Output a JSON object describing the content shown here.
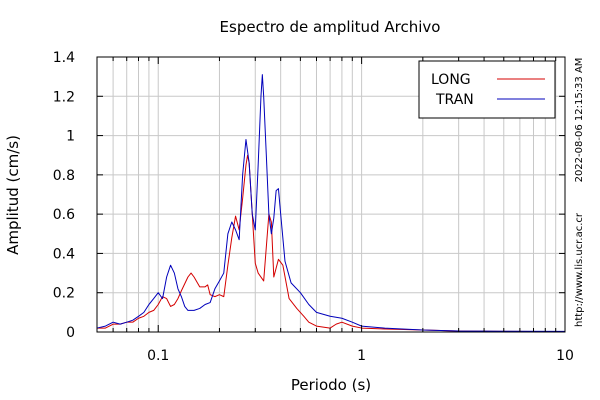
{
  "chart_data": {
    "type": "line",
    "title": "Espectro de amplitud Archivo",
    "xlabel": "Periodo (s)",
    "ylabel": "Amplitud (cm/s)",
    "x_scale": "log",
    "xlim": [
      0.05,
      10
    ],
    "ylim": [
      0,
      1.4
    ],
    "grid": true,
    "legend_position": "top-right",
    "xticks": [
      "0.1",
      "1",
      "10"
    ],
    "yticks": [
      "0",
      "0.2",
      "0.4",
      "0.6",
      "0.8",
      "1",
      "1.2",
      "1.4"
    ],
    "side_text": {
      "timestamp": "2022-08-06 12:15:33 AM",
      "url": "http://www.lis.ucr.ac.cr"
    },
    "series": [
      {
        "name": "LONG",
        "color": "#d40000",
        "points": [
          [
            0.05,
            0.02
          ],
          [
            0.055,
            0.02
          ],
          [
            0.06,
            0.04
          ],
          [
            0.065,
            0.04
          ],
          [
            0.07,
            0.05
          ],
          [
            0.075,
            0.05
          ],
          [
            0.08,
            0.07
          ],
          [
            0.085,
            0.08
          ],
          [
            0.09,
            0.1
          ],
          [
            0.095,
            0.11
          ],
          [
            0.1,
            0.14
          ],
          [
            0.105,
            0.18
          ],
          [
            0.11,
            0.17
          ],
          [
            0.115,
            0.13
          ],
          [
            0.12,
            0.14
          ],
          [
            0.125,
            0.17
          ],
          [
            0.13,
            0.21
          ],
          [
            0.14,
            0.28
          ],
          [
            0.145,
            0.3
          ],
          [
            0.15,
            0.28
          ],
          [
            0.16,
            0.23
          ],
          [
            0.17,
            0.23
          ],
          [
            0.175,
            0.24
          ],
          [
            0.18,
            0.19
          ],
          [
            0.19,
            0.18
          ],
          [
            0.2,
            0.19
          ],
          [
            0.21,
            0.18
          ],
          [
            0.22,
            0.34
          ],
          [
            0.23,
            0.48
          ],
          [
            0.24,
            0.59
          ],
          [
            0.25,
            0.52
          ],
          [
            0.26,
            0.68
          ],
          [
            0.27,
            0.85
          ],
          [
            0.275,
            0.9
          ],
          [
            0.28,
            0.86
          ],
          [
            0.29,
            0.6
          ],
          [
            0.3,
            0.35
          ],
          [
            0.31,
            0.3
          ],
          [
            0.33,
            0.26
          ],
          [
            0.35,
            0.6
          ],
          [
            0.36,
            0.56
          ],
          [
            0.37,
            0.28
          ],
          [
            0.39,
            0.37
          ],
          [
            0.41,
            0.34
          ],
          [
            0.44,
            0.17
          ],
          [
            0.48,
            0.12
          ],
          [
            0.52,
            0.08
          ],
          [
            0.55,
            0.05
          ],
          [
            0.6,
            0.03
          ],
          [
            0.7,
            0.02
          ],
          [
            0.75,
            0.04
          ],
          [
            0.8,
            0.05
          ],
          [
            0.9,
            0.03
          ],
          [
            1.0,
            0.02
          ],
          [
            1.3,
            0.015
          ],
          [
            2.0,
            0.01
          ],
          [
            3.0,
            0.005
          ],
          [
            5.0,
            0.003
          ],
          [
            10.0,
            0.002
          ]
        ]
      },
      {
        "name": "TRAN",
        "color": "#0000bb",
        "points": [
          [
            0.05,
            0.02
          ],
          [
            0.055,
            0.03
          ],
          [
            0.06,
            0.05
          ],
          [
            0.065,
            0.04
          ],
          [
            0.07,
            0.05
          ],
          [
            0.075,
            0.06
          ],
          [
            0.08,
            0.08
          ],
          [
            0.085,
            0.1
          ],
          [
            0.09,
            0.14
          ],
          [
            0.095,
            0.17
          ],
          [
            0.1,
            0.2
          ],
          [
            0.105,
            0.17
          ],
          [
            0.11,
            0.28
          ],
          [
            0.115,
            0.34
          ],
          [
            0.12,
            0.3
          ],
          [
            0.125,
            0.22
          ],
          [
            0.13,
            0.18
          ],
          [
            0.135,
            0.13
          ],
          [
            0.14,
            0.11
          ],
          [
            0.15,
            0.11
          ],
          [
            0.16,
            0.12
          ],
          [
            0.17,
            0.14
          ],
          [
            0.18,
            0.15
          ],
          [
            0.19,
            0.22
          ],
          [
            0.2,
            0.26
          ],
          [
            0.21,
            0.3
          ],
          [
            0.22,
            0.5
          ],
          [
            0.23,
            0.56
          ],
          [
            0.24,
            0.52
          ],
          [
            0.25,
            0.47
          ],
          [
            0.26,
            0.8
          ],
          [
            0.27,
            0.98
          ],
          [
            0.28,
            0.86
          ],
          [
            0.29,
            0.6
          ],
          [
            0.3,
            0.52
          ],
          [
            0.31,
            0.85
          ],
          [
            0.32,
            1.2
          ],
          [
            0.325,
            1.31
          ],
          [
            0.33,
            1.2
          ],
          [
            0.34,
            0.9
          ],
          [
            0.35,
            0.6
          ],
          [
            0.36,
            0.5
          ],
          [
            0.37,
            0.58
          ],
          [
            0.38,
            0.72
          ],
          [
            0.39,
            0.73
          ],
          [
            0.4,
            0.6
          ],
          [
            0.42,
            0.36
          ],
          [
            0.45,
            0.25
          ],
          [
            0.5,
            0.2
          ],
          [
            0.55,
            0.14
          ],
          [
            0.6,
            0.1
          ],
          [
            0.7,
            0.08
          ],
          [
            0.8,
            0.07
          ],
          [
            0.9,
            0.05
          ],
          [
            1.0,
            0.03
          ],
          [
            1.3,
            0.02
          ],
          [
            2.0,
            0.01
          ],
          [
            3.0,
            0.005
          ],
          [
            5.0,
            0.004
          ],
          [
            10.0,
            0.003
          ]
        ]
      }
    ]
  }
}
